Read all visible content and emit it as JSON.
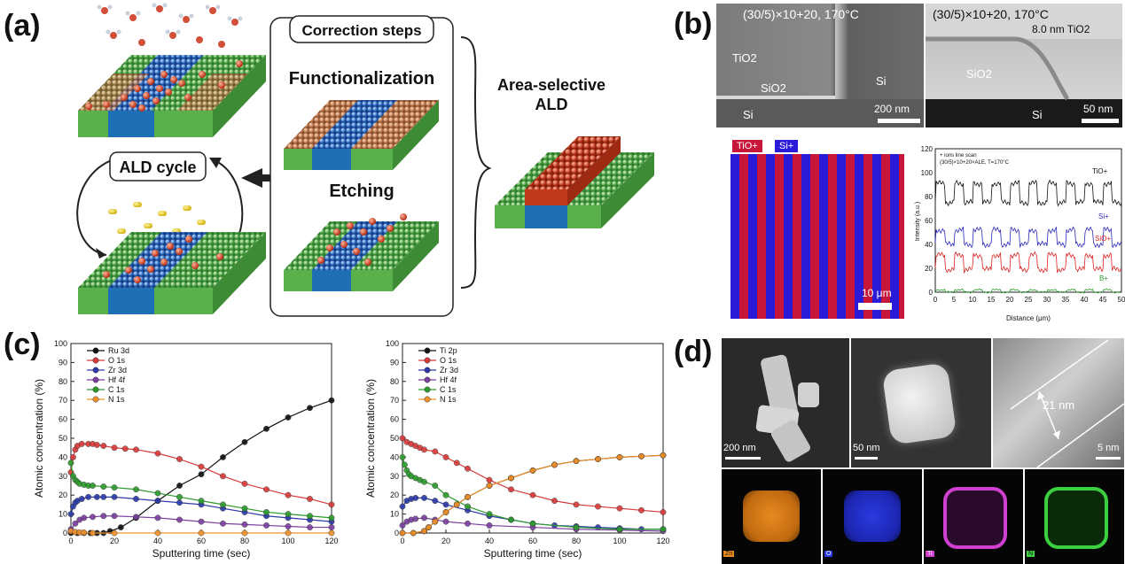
{
  "labels": {
    "a": "(a)",
    "b": "(b)",
    "c": "(c)",
    "d": "(d)"
  },
  "panel_a": {
    "correction_title": "Correction steps",
    "functionalization": "Functionalization",
    "etching": "Etching",
    "ald_cycle": "ALD cycle",
    "area_selective_line1": "Area-selective",
    "area_selective_line2": "ALD"
  },
  "panel_b": {
    "sem_left": {
      "condition": "(30/5)×10+20, 170°C",
      "tio2": "TiO2",
      "sio2": "SiO2",
      "si_right": "Si",
      "si_bottom": "Si",
      "scale": "200 nm"
    },
    "sem_right": {
      "condition": "(30/5)×10+20, 170°C",
      "thickness": "8.0 nm TiO2",
      "sio2": "SiO2",
      "si": "Si",
      "scale": "50 nm"
    },
    "map": {
      "legend_tio": "TiO+",
      "legend_si": "Si+",
      "scale": "10 μm"
    },
    "linescan": {
      "legend_line1": "+ ions line scan",
      "legend_line2": "(30/5)×10+20×ALE, T=170°C",
      "series": [
        "TiO+",
        "Si+",
        "SiO+",
        "B+"
      ],
      "xlabel": "Distance (μm)",
      "ylabel": "Intensity (a.u.)",
      "xticks": [
        "0",
        "5",
        "10",
        "15",
        "20",
        "25",
        "30",
        "35",
        "40",
        "45",
        "50"
      ],
      "yticks": [
        "0",
        "20",
        "40",
        "60",
        "80",
        "100",
        "120"
      ]
    }
  },
  "panel_d": {
    "scale1": "200 nm",
    "scale2": "50 nm",
    "thickness": "21 nm",
    "scale3": "5 nm",
    "maps": [
      "Zn",
      "O",
      "Ti",
      "N"
    ]
  },
  "chart_data": [
    {
      "type": "line",
      "xlabel": "Sputtering time (sec)",
      "ylabel": "Atomic concentration (%)",
      "xlim": [
        0,
        120
      ],
      "ylim": [
        0,
        100
      ],
      "xticks": [
        "0",
        "20",
        "40",
        "60",
        "80",
        "100",
        "120"
      ],
      "yticks": [
        "0",
        "10",
        "20",
        "30",
        "40",
        "50",
        "60",
        "70",
        "80",
        "90",
        "100"
      ],
      "legend": "top-left",
      "series": [
        {
          "name": "Ru 3d",
          "color": "#111111",
          "x": [
            0,
            3,
            6,
            9,
            12,
            15,
            18,
            23,
            30,
            40,
            50,
            60,
            70,
            80,
            90,
            100,
            110,
            120
          ],
          "y": [
            0,
            0,
            0,
            0,
            0,
            0,
            1,
            3,
            8,
            17,
            25,
            31,
            40,
            48,
            55,
            61,
            66,
            70
          ]
        },
        {
          "name": "O 1s",
          "color": "#d83a3a",
          "x": [
            0,
            1,
            2,
            3,
            5,
            8,
            10,
            12,
            15,
            20,
            25,
            30,
            40,
            50,
            60,
            70,
            80,
            90,
            100,
            110,
            120
          ],
          "y": [
            32,
            40,
            44,
            46,
            47,
            47,
            47,
            46.5,
            46,
            45,
            44.5,
            44,
            42,
            39,
            35,
            30,
            26,
            23,
            20,
            18,
            15
          ]
        },
        {
          "name": "Zr 3d",
          "color": "#2b3aa8",
          "x": [
            0,
            1,
            2,
            3,
            5,
            8,
            12,
            15,
            20,
            30,
            40,
            50,
            60,
            70,
            80,
            90,
            100,
            110,
            120
          ],
          "y": [
            10,
            14,
            16,
            17,
            18,
            19,
            19,
            19,
            19,
            18,
            17,
            16,
            15,
            13,
            11,
            9,
            8,
            7,
            6
          ]
        },
        {
          "name": "Hf 4f",
          "color": "#7b3fa0",
          "x": [
            0,
            2,
            4,
            6,
            10,
            15,
            20,
            30,
            40,
            50,
            60,
            70,
            80,
            90,
            100,
            110,
            120
          ],
          "y": [
            2,
            5,
            7,
            8,
            8.5,
            9,
            9,
            8.5,
            8,
            7,
            6,
            5,
            4.5,
            4,
            3.5,
            3,
            3
          ]
        },
        {
          "name": "C 1s",
          "color": "#2c9b2c",
          "x": [
            0,
            1,
            2,
            3,
            4,
            6,
            8,
            10,
            15,
            20,
            30,
            40,
            50,
            60,
            70,
            80,
            90,
            100,
            110,
            120
          ],
          "y": [
            37,
            30,
            28,
            27,
            26,
            25.5,
            25,
            25,
            24.5,
            24,
            23,
            21,
            19,
            17,
            15,
            13,
            11,
            10,
            9,
            8
          ]
        },
        {
          "name": "N 1s",
          "color": "#f0922b",
          "x": [
            0,
            2,
            4,
            6,
            10,
            20,
            40,
            60,
            80,
            100,
            120
          ],
          "y": [
            1,
            0.5,
            0.3,
            0.2,
            0,
            0,
            0,
            0,
            0,
            0,
            0
          ]
        }
      ]
    },
    {
      "type": "line",
      "xlabel": "Sputtering time (sec)",
      "ylabel": "Atomic concentration (%)",
      "xlim": [
        0,
        120
      ],
      "ylim": [
        0,
        100
      ],
      "xticks": [
        "0",
        "20",
        "40",
        "60",
        "80",
        "100",
        "120"
      ],
      "yticks": [
        "0",
        "10",
        "20",
        "30",
        "40",
        "50",
        "60",
        "70",
        "80",
        "90",
        "100"
      ],
      "legend": "top-left",
      "series": [
        {
          "name": "Ti 2p",
          "color": "#111111",
          "x": [
            0,
            5,
            10,
            12,
            15,
            20,
            25,
            30,
            40,
            50,
            60,
            70,
            80,
            90,
            100,
            110,
            120
          ],
          "y": [
            0,
            0,
            1,
            3,
            6,
            11,
            15,
            19,
            25,
            29,
            33,
            36,
            38,
            39,
            40,
            40.5,
            41
          ]
        },
        {
          "name": "O 1s",
          "color": "#d83a3a",
          "x": [
            0,
            2,
            4,
            6,
            8,
            10,
            15,
            20,
            25,
            30,
            40,
            50,
            60,
            70,
            80,
            90,
            100,
            110,
            120
          ],
          "y": [
            50,
            48,
            47,
            46,
            45,
            44,
            43,
            40,
            37,
            34,
            28,
            23,
            20,
            17,
            15,
            14,
            13,
            12,
            11
          ]
        },
        {
          "name": "Zr 3d",
          "color": "#2b3aa8",
          "x": [
            0,
            2,
            4,
            6,
            10,
            15,
            20,
            30,
            40,
            50,
            60,
            70,
            80,
            90,
            100,
            110,
            120
          ],
          "y": [
            14,
            17,
            18,
            18.5,
            18.5,
            17,
            15,
            12,
            9,
            7,
            5,
            4,
            3.5,
            3,
            2.5,
            2,
            2
          ]
        },
        {
          "name": "Hf 4f",
          "color": "#7b3fa0",
          "x": [
            0,
            2,
            4,
            6,
            10,
            15,
            20,
            30,
            40,
            60,
            80,
            100,
            120
          ],
          "y": [
            4,
            6,
            7,
            7.5,
            8,
            7,
            6,
            5,
            4,
            3,
            2,
            1.5,
            1
          ]
        },
        {
          "name": "C 1s",
          "color": "#2c9b2c",
          "x": [
            0,
            1,
            2,
            3,
            4,
            6,
            8,
            10,
            15,
            20,
            30,
            40,
            50,
            60,
            80,
            100,
            120
          ],
          "y": [
            40,
            36,
            33,
            31,
            30,
            29,
            28,
            27,
            25,
            20,
            14,
            10,
            7,
            5,
            3,
            2,
            2
          ]
        },
        {
          "name": "N 1s",
          "color": "#f0922b",
          "x": [
            0,
            5,
            10,
            12,
            15,
            20,
            25,
            30,
            40,
            50,
            60,
            70,
            80,
            90,
            100,
            110,
            120
          ],
          "y": [
            0,
            0,
            1,
            3,
            6,
            11,
            15,
            19,
            25,
            29,
            33,
            36,
            38,
            39,
            40,
            40.5,
            41
          ]
        }
      ]
    }
  ]
}
